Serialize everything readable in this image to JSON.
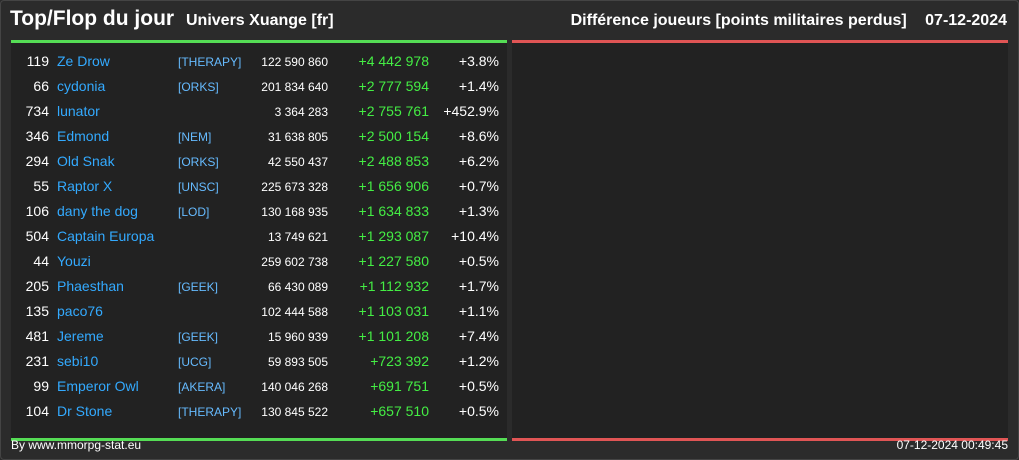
{
  "header": {
    "title": "Top/Flop du jour",
    "universe": "Univers Xuange [fr]",
    "metric": "Différence joueurs [points militaires perdus]",
    "date": "07-12-2024"
  },
  "rows": [
    {
      "rank": "119",
      "name": "Ze Drow",
      "ally": "[THERAPY]",
      "points": "122 590 860",
      "diff": "+4 442 978",
      "pct": "+3.8%"
    },
    {
      "rank": "66",
      "name": "cydonia",
      "ally": "[ORKS]",
      "points": "201 834 640",
      "diff": "+2 777 594",
      "pct": "+1.4%"
    },
    {
      "rank": "734",
      "name": "lunator",
      "ally": "",
      "points": "3 364 283",
      "diff": "+2 755 761",
      "pct": "+452.9%"
    },
    {
      "rank": "346",
      "name": "Edmond",
      "ally": "[NEM]",
      "points": "31 638 805",
      "diff": "+2 500 154",
      "pct": "+8.6%"
    },
    {
      "rank": "294",
      "name": "Old Snak",
      "ally": "[ORKS]",
      "points": "42 550 437",
      "diff": "+2 488 853",
      "pct": "+6.2%"
    },
    {
      "rank": "55",
      "name": "Raptor X",
      "ally": "[UNSC]",
      "points": "225 673 328",
      "diff": "+1 656 906",
      "pct": "+0.7%"
    },
    {
      "rank": "106",
      "name": "dany the dog",
      "ally": "[LOD]",
      "points": "130 168 935",
      "diff": "+1 634 833",
      "pct": "+1.3%"
    },
    {
      "rank": "504",
      "name": "Captain Europa",
      "ally": "",
      "points": "13 749 621",
      "diff": "+1 293 087",
      "pct": "+10.4%"
    },
    {
      "rank": "44",
      "name": "Youzi",
      "ally": "",
      "points": "259 602 738",
      "diff": "+1 227 580",
      "pct": "+0.5%"
    },
    {
      "rank": "205",
      "name": "Phaesthan",
      "ally": "[GEEK]",
      "points": "66 430 089",
      "diff": "+1 112 932",
      "pct": "+1.7%"
    },
    {
      "rank": "135",
      "name": "paco76",
      "ally": "",
      "points": "102 444 588",
      "diff": "+1 103 031",
      "pct": "+1.1%"
    },
    {
      "rank": "481",
      "name": "Jereme",
      "ally": "[GEEK]",
      "points": "15 960 939",
      "diff": "+1 101 208",
      "pct": "+7.4%"
    },
    {
      "rank": "231",
      "name": "sebi10",
      "ally": "[UCG]",
      "points": "59 893 505",
      "diff": "+723 392",
      "pct": "+1.2%"
    },
    {
      "rank": "99",
      "name": "Emperor Owl",
      "ally": "[AKERA]",
      "points": "140 046 268",
      "diff": "+691 751",
      "pct": "+0.5%"
    },
    {
      "rank": "104",
      "name": "Dr Stone",
      "ally": "[THERAPY]",
      "points": "130 845 522",
      "diff": "+657 510",
      "pct": "+0.5%"
    }
  ],
  "footer": {
    "credit": "By www.mmorpg-stat.eu",
    "timestamp": "07-12-2024 00:49:45"
  },
  "colors": {
    "top_accent": "#55dd55",
    "flop_accent": "#e05555",
    "name_link": "#33aaff",
    "gain": "#44ee44"
  }
}
